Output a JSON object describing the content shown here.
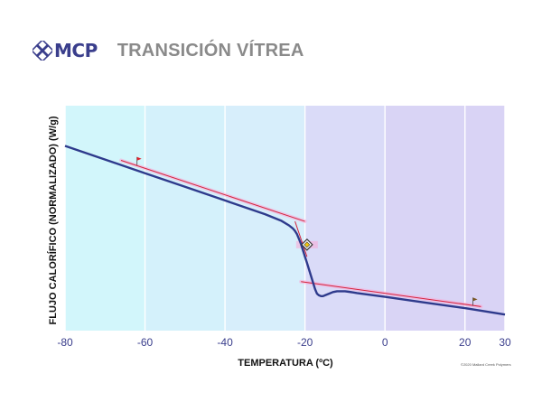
{
  "header": {
    "logo_text": "MCP",
    "title": "TRANSICIÓN VÍTREA"
  },
  "copyright": "©2020 Mallard Creek Polymers",
  "chart_data": {
    "type": "line",
    "xlabel": "TEMPERATURA (ºC)",
    "ylabel": "FLUJO CALORÍFICO (NORMALIZADO) (W/g)",
    "xlim": [
      -80,
      30
    ],
    "ylim": [
      -1.15,
      0.25
    ],
    "x_ticks": [
      -80,
      -60,
      -40,
      -20,
      0,
      20,
      30
    ],
    "x_tick_labels": [
      "-80",
      "-60",
      "-40",
      "-20",
      "0",
      "20",
      "30"
    ],
    "grid_x": true,
    "grid_y": false,
    "series": [
      {
        "x": [
          -80,
          -70,
          -60,
          -50,
          -40,
          -30,
          -26,
          -24,
          -23,
          -22.5,
          -22,
          -21.5,
          -21,
          -20.5,
          -20,
          -19.5,
          -19,
          -18.5,
          -18,
          -17.5,
          -17,
          -16.5,
          -16,
          -15.5,
          -15,
          -14,
          -13,
          -12,
          -11,
          -10,
          -9,
          -8,
          -7,
          0,
          10,
          20,
          30
        ],
        "y": [
          0.0,
          -0.085,
          -0.17,
          -0.255,
          -0.34,
          -0.425,
          -0.465,
          -0.495,
          -0.515,
          -0.53,
          -0.55,
          -0.58,
          -0.61,
          -0.65,
          -0.69,
          -0.73,
          -0.77,
          -0.81,
          -0.85,
          -0.89,
          -0.92,
          -0.93,
          -0.935,
          -0.935,
          -0.93,
          -0.92,
          -0.91,
          -0.905,
          -0.905,
          -0.905,
          -0.908,
          -0.912,
          -0.916,
          -0.94,
          -0.975,
          -1.01,
          -1.05
        ]
      }
    ],
    "tangents": [
      {
        "x": [
          -66,
          -20
        ],
        "y": [
          -0.09,
          -0.47
        ]
      },
      {
        "x": [
          -21,
          24
        ],
        "y": [
          -0.845,
          -1.0
        ]
      },
      {
        "x": [
          -22.5,
          -19.5
        ],
        "y": [
          -0.47,
          -0.69
        ]
      }
    ],
    "flags": [
      {
        "x": -62,
        "y": -0.12,
        "color": "#e0202a"
      },
      {
        "x": 22,
        "y": -0.995,
        "color": "#7a5520"
      }
    ],
    "marker": {
      "x": -19.5,
      "y": -0.615,
      "color": "#3a3a3a",
      "fill": "#f1c40f"
    },
    "highlight_color": "#f9a7d6",
    "band_colors": [
      "#d2f6fb",
      "#d4f1fb",
      "#d7eefb",
      "#dadbf8",
      "#d9d4f5",
      "#d9d3f5"
    ]
  }
}
